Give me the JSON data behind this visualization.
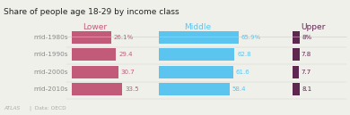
{
  "title": "Share of people age 18-29 by income class",
  "categories": [
    "mid-1980s",
    "mid-1990s",
    "mid-2000s",
    "mid-2010s"
  ],
  "lower": [
    26.1,
    29.4,
    30.7,
    33.5
  ],
  "middle": [
    65.9,
    62.8,
    61.6,
    58.4
  ],
  "upper": [
    8.0,
    7.8,
    7.7,
    8.1
  ],
  "lower_labels": [
    "26.1%",
    "29.4",
    "30.7",
    "33.5"
  ],
  "middle_labels": [
    "65.9%",
    "62.8",
    "61.6",
    "58.4"
  ],
  "upper_labels": [
    "8%",
    "7.8",
    "7.7",
    "8.1"
  ],
  "lower_color": "#c25b7a",
  "middle_color": "#5bc5f0",
  "upper_color": "#5e2750",
  "bg_color": "#f0f0eb",
  "title_color": "#222222",
  "cat_color": "#888888",
  "atlas_color": "#aaaaaa",
  "lower_header": "Lower",
  "middle_header": "Middle",
  "upper_header": "Upper"
}
